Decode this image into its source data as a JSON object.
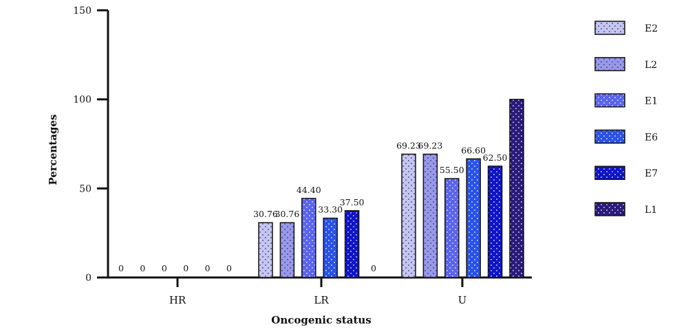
{
  "chart_data": {
    "type": "bar",
    "xlabel": "Oncogenic status",
    "ylabel": "Percentages",
    "categories": [
      "HR",
      "LR",
      "U"
    ],
    "ylim": [
      0,
      150
    ],
    "yticks": [
      0,
      50,
      100,
      150
    ],
    "legend_position": "right",
    "series": [
      {
        "name": "E2",
        "color": "#c5c5f5",
        "values": [
          0,
          30.76,
          69.23
        ],
        "labels": [
          "0",
          "30.76",
          "69.23"
        ]
      },
      {
        "name": "L2",
        "color": "#9898ee",
        "values": [
          0,
          30.76,
          69.23
        ],
        "labels": [
          "0",
          "30.76",
          "69.23"
        ]
      },
      {
        "name": "E1",
        "color": "#5a64ec",
        "values": [
          0,
          44.4,
          55.5
        ],
        "labels": [
          "0",
          "44.40",
          "55.50"
        ]
      },
      {
        "name": "E6",
        "color": "#2a52e8",
        "values": [
          0,
          33.3,
          66.6
        ],
        "labels": [
          "0",
          "33.30",
          "66.60"
        ]
      },
      {
        "name": "E7",
        "color": "#0e14c8",
        "values": [
          0,
          37.5,
          62.5
        ],
        "labels": [
          "0",
          "37.50",
          "62.50"
        ]
      },
      {
        "name": "L1",
        "color": "#2a1a7a",
        "values": [
          0,
          0,
          100
        ],
        "labels": [
          "0",
          "0",
          ""
        ]
      }
    ]
  }
}
